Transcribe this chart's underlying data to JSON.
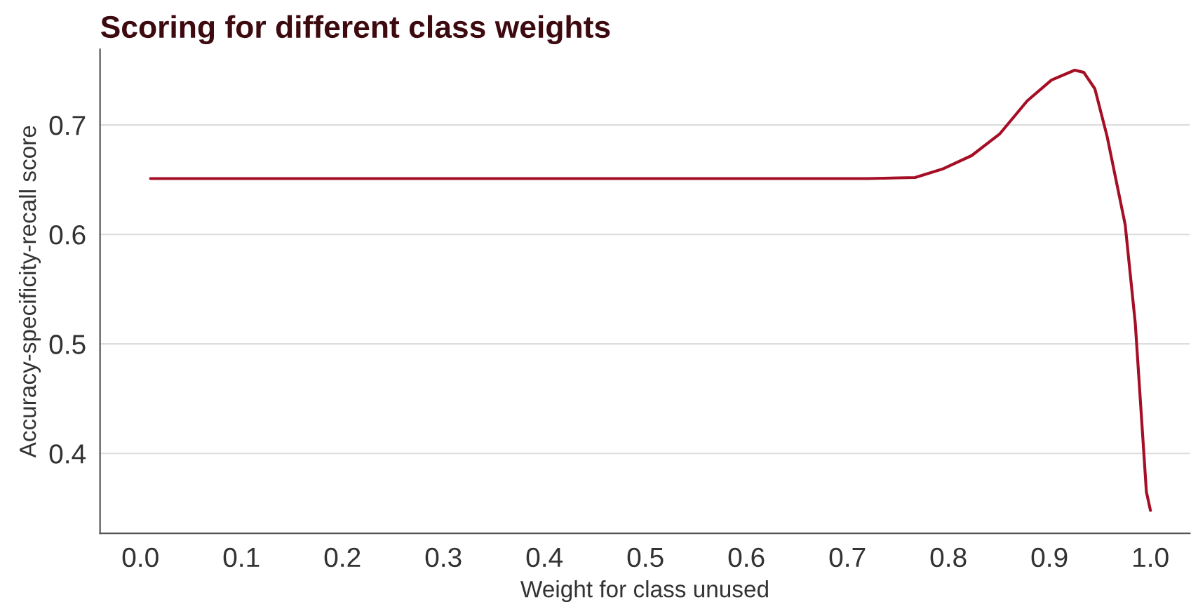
{
  "chart_data": {
    "type": "line",
    "title": "Scoring for different class weights",
    "xlabel": "Weight for class unused",
    "ylabel": "Accuracy-specificity-recall score",
    "series": [
      {
        "color": "#a50f26",
        "x": [
          0.01,
          0.2,
          0.4,
          0.6,
          0.72,
          0.767,
          0.795,
          0.823,
          0.851,
          0.878,
          0.902,
          0.925,
          0.934,
          0.945,
          0.957,
          0.975,
          0.985,
          0.996,
          1.0
        ],
        "values": [
          0.651,
          0.651,
          0.651,
          0.651,
          0.651,
          0.652,
          0.66,
          0.672,
          0.692,
          0.722,
          0.741,
          0.75,
          0.748,
          0.733,
          0.69,
          0.609,
          0.519,
          0.365,
          0.348
        ]
      }
    ],
    "xlim": [
      -0.04,
      1.039
    ],
    "ylim": [
      0.327,
      0.769
    ],
    "xticks": [
      {
        "value": 0,
        "label": "0.0"
      },
      0.1,
      0.2,
      0.3,
      0.4,
      0.5,
      0.6,
      0.7,
      0.8,
      0.9,
      {
        "value": 1,
        "label": "1.0"
      }
    ],
    "yticks": [
      0.4,
      0.5,
      0.6,
      0.7
    ],
    "grid": "y",
    "legend": false
  }
}
